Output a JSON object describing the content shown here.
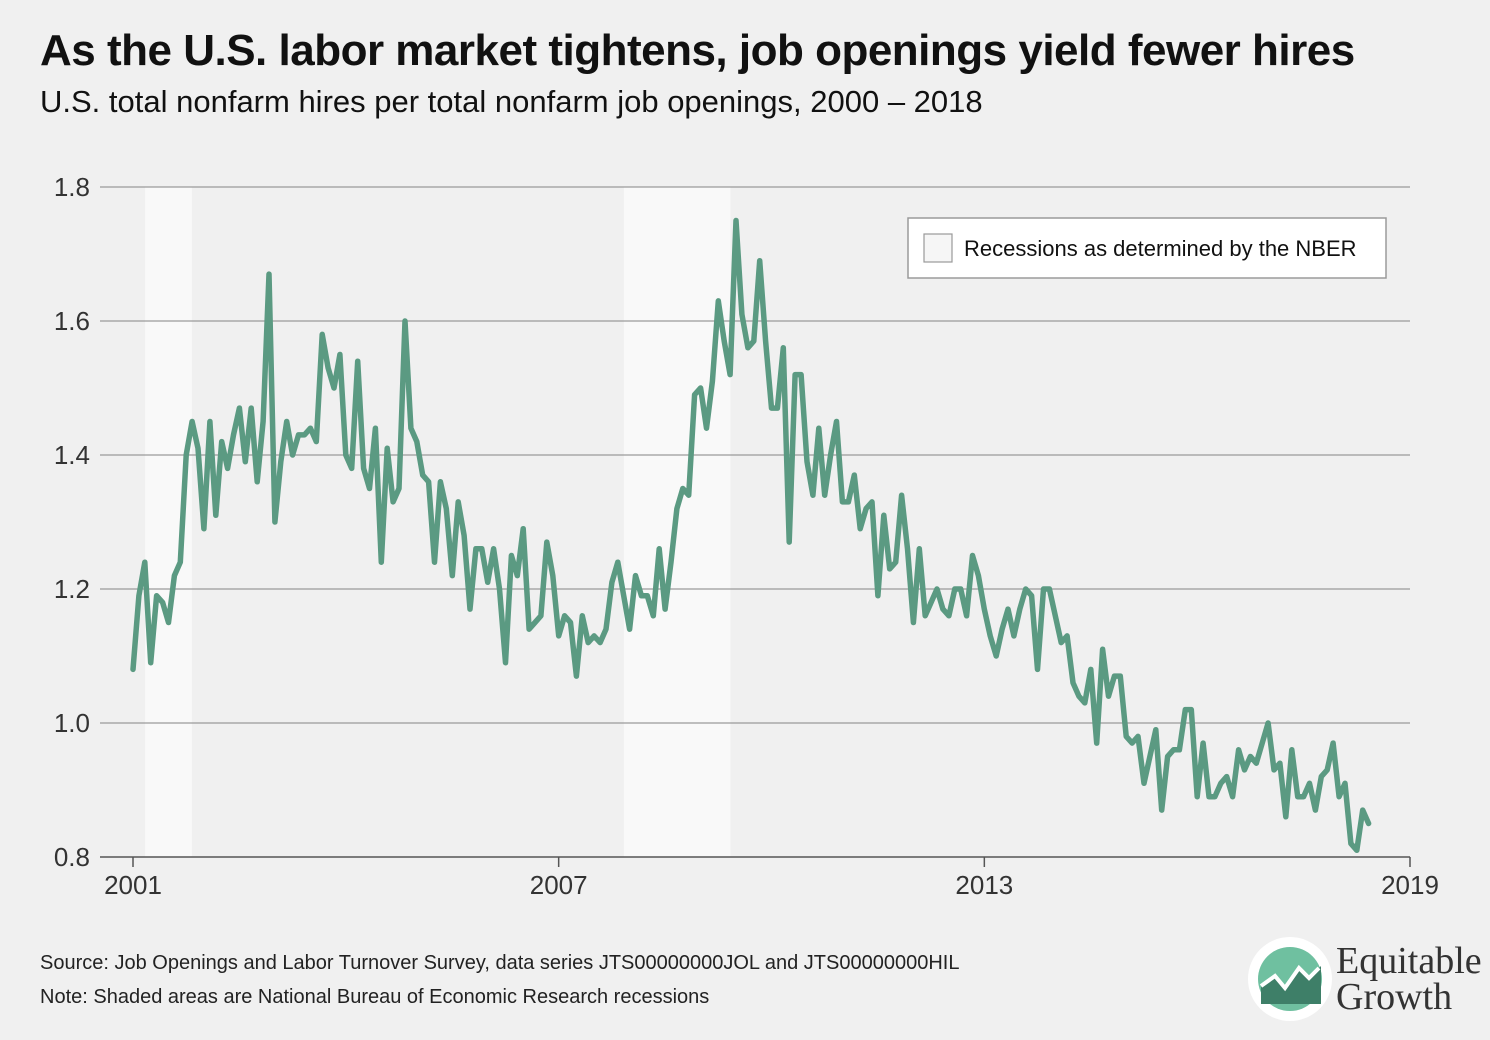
{
  "title": "As the U.S. labor market tightens, job openings yield fewer hires",
  "subtitle": "U.S. total nonfarm hires per total nonfarm job openings, 2000 – 2018",
  "source": "Source: Job Openings and Labor Turnover Survey, data series JTS00000000JOL and JTS00000000HIL",
  "note": "Note: Shaded areas are National Bureau of Economic Research recessions",
  "logo": {
    "line1": "Equitable",
    "line2": "Growth",
    "icon": "growth-chart-icon"
  },
  "colors": {
    "line": "#5b9a82",
    "recession": "#f9f9f9",
    "grid": "#9a9a9a",
    "background": "#f0f0f0"
  },
  "chart_data": {
    "type": "line",
    "title": "As the U.S. labor market tightens, job openings yield fewer hires",
    "subtitle": "U.S. total nonfarm hires per total nonfarm job openings, 2000 – 2018",
    "xlabel": "",
    "ylabel": "",
    "xlim": [
      2001.0,
      2019.0
    ],
    "ylim": [
      0.8,
      1.8
    ],
    "x_ticks": [
      "2001",
      "2007",
      "2013",
      "2019"
    ],
    "x_tick_values": [
      2001,
      2007,
      2013,
      2019
    ],
    "y_ticks": [
      "0.8",
      "1.0",
      "1.2",
      "1.4",
      "1.6",
      "1.8"
    ],
    "y_tick_values": [
      0.8,
      1.0,
      1.2,
      1.4,
      1.6,
      1.8
    ],
    "grid": "horizontal",
    "legend": {
      "position": "top-right",
      "entries": [
        "Recessions as determined by the NBER"
      ]
    },
    "recessions": [
      {
        "start": 2001.17,
        "end": 2001.83
      },
      {
        "start": 2007.92,
        "end": 2009.42
      }
    ],
    "x_start": 2001.0,
    "x_step_months": 1,
    "values": [
      1.08,
      1.19,
      1.24,
      1.09,
      1.19,
      1.18,
      1.15,
      1.22,
      1.24,
      1.4,
      1.45,
      1.41,
      1.29,
      1.45,
      1.31,
      1.42,
      1.38,
      1.43,
      1.47,
      1.39,
      1.47,
      1.36,
      1.45,
      1.67,
      1.3,
      1.39,
      1.45,
      1.4,
      1.43,
      1.43,
      1.44,
      1.42,
      1.58,
      1.53,
      1.5,
      1.55,
      1.4,
      1.38,
      1.54,
      1.38,
      1.35,
      1.44,
      1.24,
      1.41,
      1.33,
      1.35,
      1.6,
      1.44,
      1.42,
      1.37,
      1.36,
      1.24,
      1.36,
      1.32,
      1.22,
      1.33,
      1.28,
      1.17,
      1.26,
      1.26,
      1.21,
      1.26,
      1.2,
      1.09,
      1.25,
      1.22,
      1.29,
      1.14,
      1.15,
      1.16,
      1.27,
      1.22,
      1.13,
      1.16,
      1.15,
      1.07,
      1.16,
      1.12,
      1.13,
      1.12,
      1.14,
      1.21,
      1.24,
      1.19,
      1.14,
      1.22,
      1.19,
      1.19,
      1.16,
      1.26,
      1.17,
      1.24,
      1.32,
      1.35,
      1.34,
      1.49,
      1.5,
      1.44,
      1.51,
      1.63,
      1.57,
      1.52,
      1.75,
      1.61,
      1.56,
      1.57,
      1.69,
      1.57,
      1.47,
      1.47,
      1.56,
      1.27,
      1.52,
      1.52,
      1.39,
      1.34,
      1.44,
      1.34,
      1.4,
      1.45,
      1.33,
      1.33,
      1.37,
      1.29,
      1.32,
      1.33,
      1.19,
      1.31,
      1.23,
      1.24,
      1.34,
      1.26,
      1.15,
      1.26,
      1.16,
      1.18,
      1.2,
      1.17,
      1.16,
      1.2,
      1.2,
      1.16,
      1.25,
      1.22,
      1.17,
      1.13,
      1.1,
      1.14,
      1.17,
      1.13,
      1.17,
      1.2,
      1.19,
      1.08,
      1.2,
      1.2,
      1.16,
      1.12,
      1.13,
      1.06,
      1.04,
      1.03,
      1.08,
      0.97,
      1.11,
      1.04,
      1.07,
      1.07,
      0.98,
      0.97,
      0.98,
      0.91,
      0.95,
      0.99,
      0.87,
      0.95,
      0.96,
      0.96,
      1.02,
      1.02,
      0.89,
      0.97,
      0.89,
      0.89,
      0.91,
      0.92,
      0.89,
      0.96,
      0.93,
      0.95,
      0.94,
      0.97,
      1.0,
      0.93,
      0.94,
      0.86,
      0.96,
      0.89,
      0.89,
      0.91,
      0.87,
      0.92,
      0.93,
      0.97,
      0.89,
      0.91,
      0.82,
      0.81,
      0.87,
      0.85
    ]
  }
}
